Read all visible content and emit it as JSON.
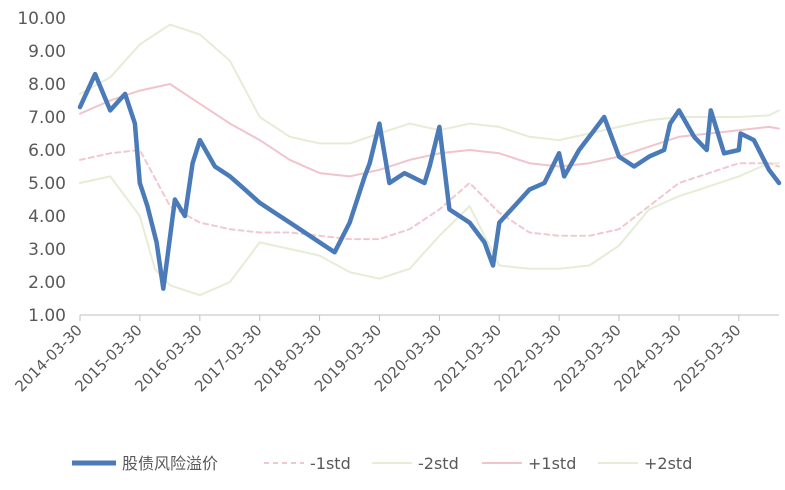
{
  "chart_data": {
    "type": "line",
    "title": "",
    "xlabel": "",
    "ylabel": "",
    "ylim": [
      1.0,
      10.0
    ],
    "yticks": [
      "1.00",
      "2.00",
      "3.00",
      "4.00",
      "5.00",
      "6.00",
      "7.00",
      "8.00",
      "9.00",
      "10.00"
    ],
    "x_tick_labels": [
      "2014-03-30",
      "2015-03-30",
      "2016-03-30",
      "2017-03-30",
      "2018-03-30",
      "2019-03-30",
      "2020-03-30",
      "2021-03-30",
      "2022-03-30",
      "2023-03-30",
      "2024-03-30",
      "2025-03-30"
    ],
    "xlim": [
      "2014-03-30",
      "2025-11-30"
    ],
    "grid": false,
    "legend_position": "bottom",
    "series": [
      {
        "name": "股债风险溢价",
        "color": "#4a7ab8",
        "style": "solid-thick",
        "x": [
          "2014-03-30",
          "2014-06-30",
          "2014-09-30",
          "2014-12-30",
          "2015-02-28",
          "2015-03-30",
          "2015-05-15",
          "2015-07-10",
          "2015-08-20",
          "2015-10-30",
          "2015-12-30",
          "2016-02-15",
          "2016-03-30",
          "2016-06-30",
          "2016-09-30",
          "2016-12-30",
          "2017-03-30",
          "2017-06-30",
          "2017-09-30",
          "2017-12-30",
          "2018-03-30",
          "2018-06-30",
          "2018-09-30",
          "2018-12-30",
          "2019-01-30",
          "2019-03-30",
          "2019-05-30",
          "2019-08-30",
          "2019-12-30",
          "2020-01-30",
          "2020-03-30",
          "2020-05-30",
          "2020-09-30",
          "2020-12-30",
          "2021-02-20",
          "2021-03-30",
          "2021-06-30",
          "2021-09-30",
          "2021-12-30",
          "2022-03-30",
          "2022-04-30",
          "2022-07-30",
          "2022-10-30",
          "2022-12-30",
          "2023-03-30",
          "2023-06-30",
          "2023-09-30",
          "2023-12-30",
          "2024-02-05",
          "2024-03-30",
          "2024-06-30",
          "2024-09-15",
          "2024-10-10",
          "2024-12-30",
          "2025-03-30",
          "2025-04-10",
          "2025-06-30",
          "2025-09-30",
          "2025-11-30"
        ],
        "values": [
          7.3,
          8.3,
          7.2,
          7.7,
          6.8,
          5.0,
          4.3,
          3.2,
          1.8,
          4.5,
          4.0,
          5.6,
          6.3,
          5.5,
          5.2,
          4.8,
          4.4,
          4.1,
          3.8,
          3.5,
          3.2,
          2.9,
          3.8,
          5.2,
          5.6,
          6.8,
          5.0,
          5.3,
          5.0,
          5.5,
          6.7,
          4.2,
          3.8,
          3.2,
          2.5,
          3.8,
          4.3,
          4.8,
          5.0,
          5.9,
          5.2,
          6.0,
          6.6,
          7.0,
          5.8,
          5.5,
          5.8,
          6.0,
          6.8,
          7.2,
          6.4,
          6.0,
          7.2,
          5.9,
          6.0,
          6.5,
          6.3,
          5.4,
          5.0
        ]
      },
      {
        "name": "-1std",
        "color": "#f2c8cf",
        "style": "dashed",
        "x": [
          "2014-03-30",
          "2014-09-30",
          "2015-03-30",
          "2015-09-30",
          "2016-03-30",
          "2016-09-30",
          "2017-03-30",
          "2017-09-30",
          "2018-03-30",
          "2018-09-30",
          "2019-03-30",
          "2019-09-30",
          "2020-03-30",
          "2020-09-30",
          "2021-03-30",
          "2021-09-30",
          "2022-03-30",
          "2022-09-30",
          "2023-03-30",
          "2023-09-30",
          "2024-03-30",
          "2024-09-30",
          "2025-03-30",
          "2025-09-30",
          "2025-11-30"
        ],
        "values": [
          5.7,
          5.9,
          6.0,
          4.3,
          3.8,
          3.6,
          3.5,
          3.5,
          3.4,
          3.3,
          3.3,
          3.6,
          4.2,
          5.0,
          4.1,
          3.5,
          3.4,
          3.4,
          3.6,
          4.3,
          5.0,
          5.3,
          5.6,
          5.6,
          5.5
        ]
      },
      {
        "name": "-2std",
        "color": "#e6edd6",
        "style": "solid",
        "x": [
          "2014-03-30",
          "2014-09-30",
          "2015-03-30",
          "2015-06-30",
          "2015-09-30",
          "2016-03-30",
          "2016-09-30",
          "2017-03-30",
          "2017-09-30",
          "2018-03-30",
          "2018-09-30",
          "2019-03-30",
          "2019-09-30",
          "2020-03-30",
          "2020-09-30",
          "2021-03-30",
          "2021-09-30",
          "2022-03-30",
          "2022-09-30",
          "2023-03-30",
          "2023-09-30",
          "2024-03-30",
          "2024-09-30",
          "2025-03-30",
          "2025-09-30",
          "2025-11-30"
        ],
        "values": [
          5.0,
          5.2,
          4.0,
          2.4,
          1.9,
          1.6,
          2.0,
          3.2,
          3.0,
          2.8,
          2.3,
          2.1,
          2.4,
          3.4,
          4.3,
          2.5,
          2.4,
          2.4,
          2.5,
          3.1,
          4.2,
          4.6,
          4.9,
          5.2,
          5.6,
          5.6
        ]
      },
      {
        "name": "+1std",
        "color": "#f1c4cc",
        "style": "solid",
        "x": [
          "2014-03-30",
          "2014-09-30",
          "2015-03-30",
          "2015-09-30",
          "2016-03-30",
          "2016-09-30",
          "2017-03-30",
          "2017-09-30",
          "2018-03-30",
          "2018-09-30",
          "2019-03-30",
          "2019-09-30",
          "2020-03-30",
          "2020-09-30",
          "2021-03-30",
          "2021-09-30",
          "2022-03-30",
          "2022-09-30",
          "2023-03-30",
          "2023-09-30",
          "2024-03-30",
          "2024-09-30",
          "2025-03-30",
          "2025-09-30",
          "2025-11-30"
        ],
        "values": [
          7.1,
          7.5,
          7.8,
          8.0,
          7.4,
          6.8,
          6.3,
          5.7,
          5.3,
          5.2,
          5.4,
          5.7,
          5.9,
          6.0,
          5.9,
          5.6,
          5.5,
          5.6,
          5.8,
          6.1,
          6.4,
          6.5,
          6.6,
          6.7,
          6.65
        ]
      },
      {
        "name": "+2std",
        "color": "#e6edd6",
        "style": "solid",
        "x": [
          "2014-03-30",
          "2014-09-30",
          "2015-03-30",
          "2015-09-30",
          "2016-03-30",
          "2016-09-30",
          "2017-03-30",
          "2017-09-30",
          "2018-03-30",
          "2018-09-30",
          "2019-03-30",
          "2019-09-30",
          "2020-03-30",
          "2020-09-30",
          "2021-03-30",
          "2021-09-30",
          "2022-03-30",
          "2022-09-30",
          "2023-03-30",
          "2023-09-30",
          "2024-03-30",
          "2024-09-30",
          "2025-03-30",
          "2025-09-30",
          "2025-11-30"
        ],
        "values": [
          7.7,
          8.2,
          9.2,
          9.8,
          9.5,
          8.7,
          7.0,
          6.4,
          6.2,
          6.2,
          6.5,
          6.8,
          6.6,
          6.8,
          6.7,
          6.4,
          6.3,
          6.5,
          6.7,
          6.9,
          7.0,
          7.0,
          7.0,
          7.05,
          7.2
        ]
      }
    ]
  }
}
